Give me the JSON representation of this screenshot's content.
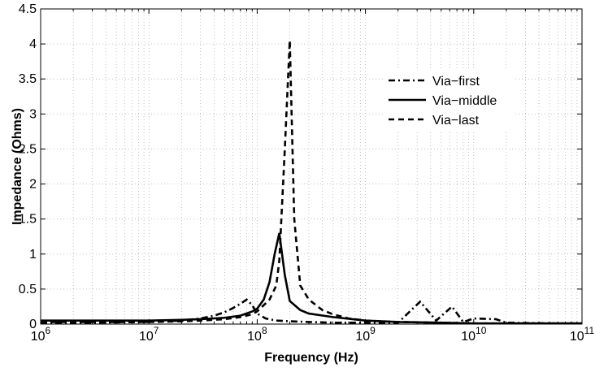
{
  "chart_data": {
    "type": "line",
    "title": "",
    "xlabel": "Frequency (Hz)",
    "ylabel": "Impedance (Ohms)",
    "xscale": "log",
    "xlim": [
      1000000.0,
      100000000000.0
    ],
    "ylim": [
      0,
      4.5
    ],
    "grid": true,
    "legend_position": "top-right",
    "x_ticks": [
      {
        "base": "10",
        "exp": "6"
      },
      {
        "base": "10",
        "exp": "7"
      },
      {
        "base": "10",
        "exp": "8"
      },
      {
        "base": "10",
        "exp": "9"
      },
      {
        "base": "10",
        "exp": "10"
      },
      {
        "base": "10",
        "exp": "11"
      }
    ],
    "y_ticks": [
      "0",
      "0.5",
      "1",
      "1.5",
      "2",
      "2.5",
      "3",
      "3.5",
      "4",
      "4.5"
    ],
    "series": [
      {
        "name": "Via−first",
        "style": "dashdot",
        "color": "#000000",
        "x": [
          1000000.0,
          3000000.0,
          10000000.0,
          20000000.0,
          30000000.0,
          40000000.0,
          50000000.0,
          60000000.0,
          70000000.0,
          80000000.0,
          90000000.0,
          100000000.0,
          120000000.0,
          150000000.0,
          200000000.0,
          300000000.0,
          500000000.0,
          1000000000.0,
          2000000000.0,
          3200000000.0,
          4500000000.0,
          6300000000.0,
          8000000000.0,
          10000000000.0,
          16000000000.0,
          20000000000.0,
          50000000000.0,
          100000000000.0
        ],
        "y": [
          0.02,
          0.02,
          0.03,
          0.05,
          0.08,
          0.12,
          0.17,
          0.23,
          0.29,
          0.35,
          0.27,
          0.15,
          0.08,
          0.05,
          0.04,
          0.03,
          0.02,
          0.02,
          0.02,
          0.32,
          0.05,
          0.25,
          0.03,
          0.08,
          0.07,
          0.02,
          0.01,
          0.01
        ]
      },
      {
        "name": "Via−middle",
        "style": "solid",
        "color": "#000000",
        "x": [
          1000000.0,
          3000000.0,
          10000000.0,
          20000000.0,
          30000000.0,
          50000000.0,
          70000000.0,
          90000000.0,
          100000000.0,
          115000000.0,
          130000000.0,
          145000000.0,
          160000000.0,
          180000000.0,
          200000000.0,
          250000000.0,
          300000000.0,
          500000000.0,
          1000000000.0,
          2000000000.0,
          5000000000.0,
          10000000000.0,
          100000000000.0
        ],
        "y": [
          0.05,
          0.05,
          0.05,
          0.06,
          0.07,
          0.09,
          0.12,
          0.18,
          0.22,
          0.35,
          0.6,
          1.0,
          1.3,
          0.7,
          0.33,
          0.2,
          0.15,
          0.1,
          0.05,
          0.03,
          0.02,
          0.01,
          0.01
        ]
      },
      {
        "name": "Via−last",
        "style": "dashed",
        "color": "#000000",
        "x": [
          1000000.0,
          3000000.0,
          10000000.0,
          20000000.0,
          30000000.0,
          50000000.0,
          70000000.0,
          90000000.0,
          100000000.0,
          130000000.0,
          150000000.0,
          160000000.0,
          180000000.0,
          200000000.0,
          220000000.0,
          250000000.0,
          300000000.0,
          400000000.0,
          500000000.0,
          700000000.0,
          1000000000.0,
          2000000000.0,
          5000000000.0,
          10000000000.0,
          100000000000.0
        ],
        "y": [
          0.03,
          0.03,
          0.03,
          0.04,
          0.05,
          0.07,
          0.1,
          0.14,
          0.18,
          0.35,
          0.55,
          0.9,
          2.5,
          4.05,
          1.5,
          0.55,
          0.35,
          0.2,
          0.14,
          0.08,
          0.05,
          0.03,
          0.02,
          0.01,
          0.01
        ]
      }
    ]
  }
}
